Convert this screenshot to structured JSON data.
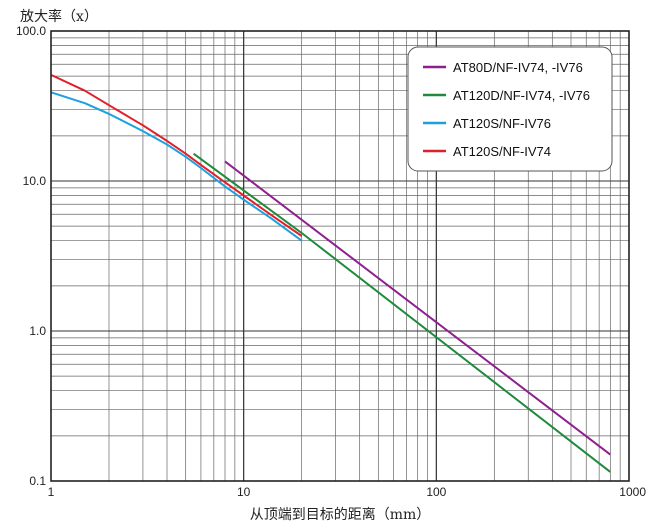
{
  "chart_data": {
    "type": "line",
    "ylabel": "放大率（x）",
    "xlabel": "从顶端到目标的距离（mm）",
    "xscale": "log",
    "yscale": "log",
    "xlim": [
      1,
      1000
    ],
    "ylim": [
      0.1,
      100
    ],
    "grid": true,
    "legend_position": "top-right",
    "x_tick_labels": [
      "1",
      "10",
      "100",
      "1000"
    ],
    "y_tick_labels": [
      "100.0",
      "10.0",
      "1.0",
      "0.1"
    ],
    "x_ticks": [
      1,
      10,
      100,
      1000
    ],
    "y_ticks": [
      100,
      10,
      1,
      0.1
    ],
    "series": [
      {
        "name": "AT80D/NF-IV74, -IV76",
        "color": "#8e1f8e",
        "points": [
          [
            8,
            13.5
          ],
          [
            800,
            0.15
          ]
        ]
      },
      {
        "name": "AT120D/NF-IV74, -IV76",
        "color": "#1e8a3c",
        "points": [
          [
            5.5,
            15.2
          ],
          [
            20,
            4.5
          ],
          [
            800,
            0.115
          ]
        ]
      },
      {
        "name": "AT120S/NF-IV76",
        "color": "#1ea0e0",
        "points": [
          [
            1,
            39
          ],
          [
            1.5,
            33
          ],
          [
            2,
            28
          ],
          [
            3,
            21.5
          ],
          [
            4,
            17.5
          ],
          [
            5,
            14.5
          ],
          [
            6,
            12.2
          ],
          [
            8,
            9.2
          ],
          [
            10,
            7.5
          ],
          [
            14,
            5.6
          ],
          [
            20,
            4.0
          ]
        ]
      },
      {
        "name": "AT120S/NF-IV74",
        "color": "#e0202a",
        "points": [
          [
            1,
            51
          ],
          [
            1.5,
            40
          ],
          [
            2,
            32
          ],
          [
            3,
            23.5
          ],
          [
            4,
            18.5
          ],
          [
            5,
            15.2
          ],
          [
            6,
            12.8
          ],
          [
            8,
            9.8
          ],
          [
            10,
            8.0
          ],
          [
            14,
            5.9
          ],
          [
            20,
            4.3
          ]
        ]
      }
    ]
  }
}
